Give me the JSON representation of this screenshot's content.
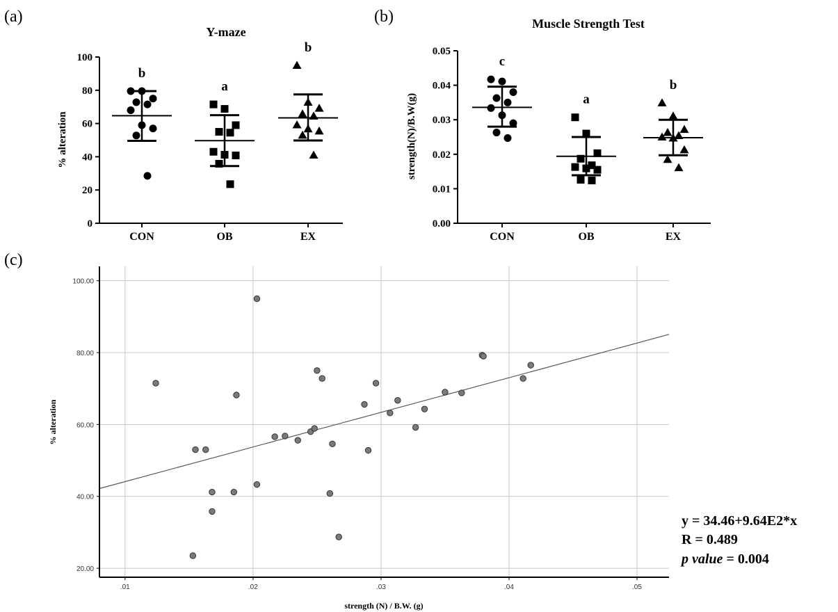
{
  "panels": {
    "a": "(a)",
    "b": "(b)",
    "c": "(c)"
  },
  "chart_data": [
    {
      "id": "a",
      "type": "scatter",
      "title": "Y-maze",
      "ylabel": "% alteration",
      "ylim": [
        0,
        100
      ],
      "yticks": [
        "0",
        "20",
        "40",
        "60",
        "80",
        "100"
      ],
      "categories": [
        "CON",
        "OB",
        "EX"
      ],
      "markers": [
        "circle",
        "square",
        "triangle"
      ],
      "letters": [
        "b",
        "a",
        "b"
      ],
      "summary": [
        {
          "mean": 64.7,
          "sd_low": 49.6,
          "sd_high": 79.5
        },
        {
          "mean": 49.7,
          "sd_low": 34.4,
          "sd_high": 65.0
        },
        {
          "mean": 63.4,
          "sd_low": 49.8,
          "sd_high": 77.5
        }
      ],
      "points": [
        [
          79.5,
          79.5,
          75.0,
          72.8,
          71.5,
          68.0,
          59.0,
          57.0,
          52.8,
          28.5
        ],
        [
          71.5,
          68.8,
          59.0,
          55.0,
          54.5,
          43.0,
          41.2,
          40.8,
          35.8,
          23.5
        ],
        [
          95.0,
          72.8,
          69.2,
          65.8,
          64.5,
          59.2,
          56.8,
          55.5,
          53.0,
          41.0
        ]
      ]
    },
    {
      "id": "b",
      "type": "scatter",
      "title": "Muscle Strength Test",
      "ylabel": "strength(N)/B.W(g)",
      "ylim": [
        0,
        0.05
      ],
      "yticks": [
        "0.00",
        "0.01",
        "0.02",
        "0.03",
        "0.04",
        "0.05"
      ],
      "categories": [
        "CON",
        "OB",
        "EX"
      ],
      "markers": [
        "circle",
        "square",
        "triangle"
      ],
      "letters": [
        "c",
        "a",
        "b"
      ],
      "summary": [
        {
          "mean": 0.0336,
          "sd_low": 0.028,
          "sd_high": 0.0396
        },
        {
          "mean": 0.0194,
          "sd_low": 0.0139,
          "sd_high": 0.025
        },
        {
          "mean": 0.0248,
          "sd_low": 0.0197,
          "sd_high": 0.03
        }
      ],
      "points": [
        [
          0.0417,
          0.0411,
          0.038,
          0.0363,
          0.035,
          0.0334,
          0.0313,
          0.029,
          0.0263,
          0.0247
        ],
        [
          0.0307,
          0.026,
          0.0203,
          0.0187,
          0.0168,
          0.0163,
          0.0159,
          0.0155,
          0.0126,
          0.0124
        ],
        [
          0.0349,
          0.0311,
          0.0272,
          0.0263,
          0.0254,
          0.025,
          0.0247,
          0.0213,
          0.0185,
          0.0161
        ]
      ]
    },
    {
      "id": "c",
      "type": "scatter",
      "xlabel": "strength (N) / B.W. (g)",
      "ylabel": "% alteration",
      "xlim": [
        0.008,
        0.0525
      ],
      "ylim": [
        17.5,
        104
      ],
      "xticks": [
        {
          "v": 0.01,
          "label": ".01"
        },
        {
          "v": 0.02,
          "label": ".02"
        },
        {
          "v": 0.03,
          "label": ".03"
        },
        {
          "v": 0.04,
          "label": ".04"
        },
        {
          "v": 0.05,
          "label": ".05"
        }
      ],
      "yticks": [
        {
          "v": 20,
          "label": "20.00"
        },
        {
          "v": 40,
          "label": "40.00"
        },
        {
          "v": 60,
          "label": "60.00"
        },
        {
          "v": 80,
          "label": "80.00"
        },
        {
          "v": 100,
          "label": "100.00"
        }
      ],
      "fit": {
        "intercept": 34.46,
        "slope": 964
      },
      "annotations": {
        "equation": "y = 34.46+9.64E2*x",
        "r": "R = 0.489",
        "p_italic": "p value",
        "p_value": " = 0.004"
      },
      "points": [
        {
          "x": 0.0124,
          "y": 71.5
        },
        {
          "x": 0.0203,
          "y": 95.0
        },
        {
          "x": 0.0153,
          "y": 23.5
        },
        {
          "x": 0.0155,
          "y": 53.0
        },
        {
          "x": 0.0163,
          "y": 53.0
        },
        {
          "x": 0.0168,
          "y": 41.2
        },
        {
          "x": 0.0168,
          "y": 35.8
        },
        {
          "x": 0.0185,
          "y": 41.2
        },
        {
          "x": 0.0187,
          "y": 68.2
        },
        {
          "x": 0.0203,
          "y": 43.3
        },
        {
          "x": 0.0217,
          "y": 56.6
        },
        {
          "x": 0.0225,
          "y": 56.8
        },
        {
          "x": 0.0235,
          "y": 55.6
        },
        {
          "x": 0.0245,
          "y": 58.0
        },
        {
          "x": 0.0248,
          "y": 58.9
        },
        {
          "x": 0.025,
          "y": 75.0
        },
        {
          "x": 0.0254,
          "y": 72.8
        },
        {
          "x": 0.026,
          "y": 40.8
        },
        {
          "x": 0.0262,
          "y": 54.6
        },
        {
          "x": 0.0267,
          "y": 28.7
        },
        {
          "x": 0.0287,
          "y": 65.6
        },
        {
          "x": 0.029,
          "y": 52.8
        },
        {
          "x": 0.0296,
          "y": 71.5
        },
        {
          "x": 0.0307,
          "y": 63.2
        },
        {
          "x": 0.0313,
          "y": 66.7
        },
        {
          "x": 0.0327,
          "y": 59.2
        },
        {
          "x": 0.0334,
          "y": 64.3
        },
        {
          "x": 0.035,
          "y": 69.0
        },
        {
          "x": 0.0363,
          "y": 68.8
        },
        {
          "x": 0.0379,
          "y": 79.3
        },
        {
          "x": 0.038,
          "y": 79.0
        },
        {
          "x": 0.0411,
          "y": 72.8
        },
        {
          "x": 0.0417,
          "y": 76.5
        }
      ]
    }
  ]
}
